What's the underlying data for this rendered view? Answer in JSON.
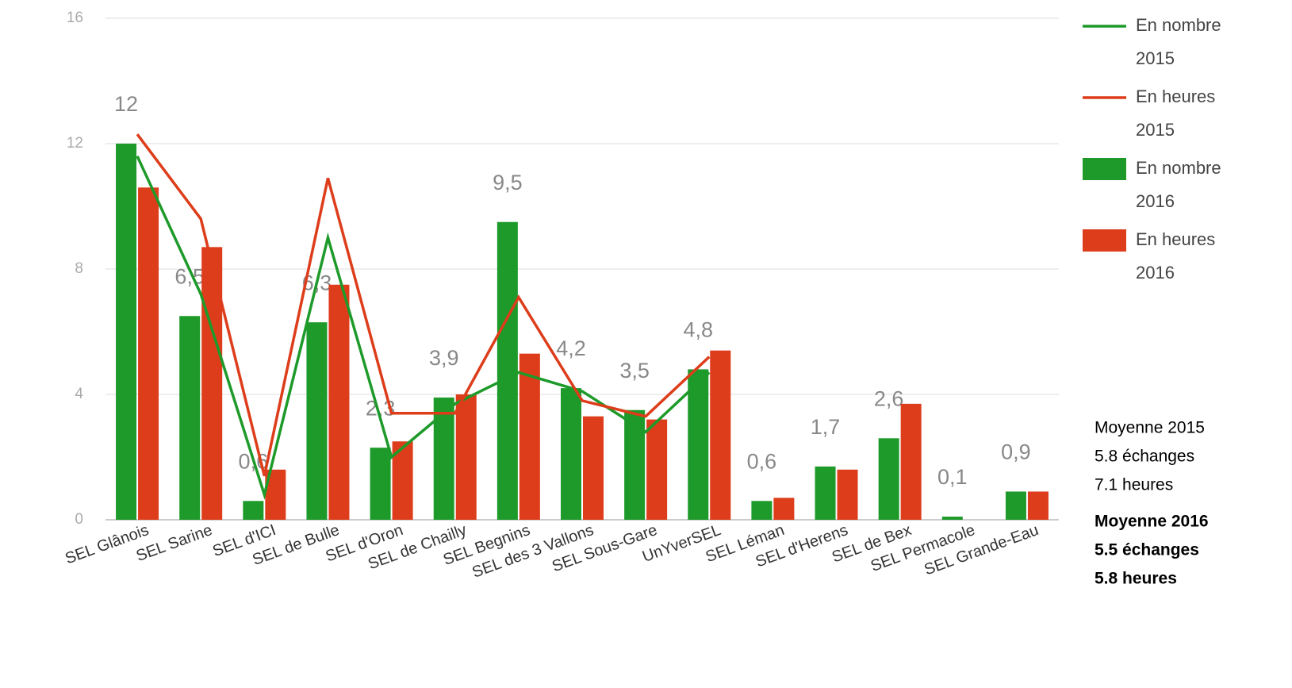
{
  "chart_data": {
    "type": "combo",
    "categories": [
      "SEL Glânois",
      "SEL Sarine",
      "SEL d'ICI",
      "SEL de Bulle",
      "SEL d'Oron",
      "SEL de Chailly",
      "SEL Begnins",
      "SEL des 3 Vallons",
      "SEL Sous-Gare",
      "UnYverSEL",
      "SEL Léman",
      "SEL d'Herens",
      "SEL de Bex",
      "SEL Permacole",
      "SEL Grande-Eau"
    ],
    "series": [
      {
        "name": "En nombre 2015",
        "type": "line",
        "color": "#1e9a2a",
        "values": [
          11.6,
          7.2,
          0.8,
          9.0,
          2.0,
          3.7,
          4.7,
          4.1,
          2.8,
          4.7,
          null,
          null,
          null,
          null,
          null
        ]
      },
      {
        "name": "En heures 2015",
        "type": "line",
        "color": "#dd3d1a",
        "values": [
          12.3,
          9.6,
          1.4,
          10.9,
          3.4,
          3.4,
          7.1,
          3.8,
          3.3,
          5.2,
          null,
          null,
          null,
          null,
          null
        ]
      },
      {
        "name": "En nombre 2016",
        "type": "bar",
        "color": "#1e9a2a",
        "values": [
          12,
          6.5,
          0.6,
          6.3,
          2.3,
          3.9,
          9.5,
          4.2,
          3.5,
          4.8,
          0.6,
          1.7,
          2.6,
          0.1,
          0.9
        ],
        "value_labels": [
          "12",
          "6,5",
          "0,6",
          "6,3",
          "2,3",
          "3,9",
          "9,5",
          "4,2",
          "3,5",
          "4,8",
          "0,6",
          "1,7",
          "2,6",
          "0,1",
          "0,9"
        ]
      },
      {
        "name": "En heures 2016",
        "type": "bar",
        "color": "#dd3d1a",
        "values": [
          10.6,
          8.7,
          1.6,
          7.5,
          2.5,
          4.0,
          5.3,
          3.3,
          3.2,
          5.4,
          0.7,
          1.6,
          3.7,
          0,
          0.9
        ]
      }
    ],
    "ylim": [
      0,
      16
    ],
    "yticks": [
      0,
      4,
      8,
      12,
      16
    ],
    "grid": true,
    "legend": "right",
    "annotations": [
      {
        "bold": false,
        "lines": [
          "Moyenne 2015",
          "5.8 échanges",
          "7.1 heures"
        ]
      },
      {
        "bold": true,
        "lines": [
          "Moyenne 2016",
          "5.5 échanges",
          "5.8 heures"
        ]
      }
    ]
  }
}
